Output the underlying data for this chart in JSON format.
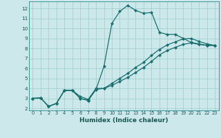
{
  "xlabel": "Humidex (Indice chaleur)",
  "background_color": "#cce8ea",
  "grid_color": "#99cccc",
  "line_color": "#1a6e6e",
  "xlim": [
    -0.5,
    23.5
  ],
  "ylim": [
    1.8,
    12.7
  ],
  "xticks": [
    0,
    1,
    2,
    3,
    4,
    5,
    6,
    7,
    8,
    9,
    10,
    11,
    12,
    13,
    14,
    15,
    16,
    17,
    18,
    19,
    20,
    21,
    22,
    23
  ],
  "yticks": [
    2,
    3,
    4,
    5,
    6,
    7,
    8,
    9,
    10,
    11,
    12
  ],
  "line1_x": [
    0,
    1,
    2,
    3,
    4,
    5,
    6,
    7,
    8,
    9,
    10,
    11,
    12,
    13,
    14,
    15,
    16,
    17,
    18,
    19,
    20,
    21,
    22,
    23
  ],
  "line1_y": [
    3.0,
    3.05,
    2.2,
    2.5,
    3.8,
    3.8,
    3.0,
    2.8,
    3.9,
    6.2,
    10.5,
    11.7,
    12.3,
    11.8,
    11.5,
    11.6,
    9.6,
    9.4,
    9.4,
    9.0,
    8.6,
    8.45,
    8.3,
    8.3
  ],
  "line2_x": [
    0,
    1,
    2,
    3,
    4,
    5,
    6,
    7,
    8,
    9,
    10,
    11,
    12,
    13,
    14,
    15,
    16,
    17,
    18,
    19,
    20,
    21,
    22,
    23
  ],
  "line2_y": [
    3.0,
    3.05,
    2.2,
    2.5,
    3.8,
    3.8,
    3.2,
    2.9,
    4.0,
    4.0,
    4.5,
    5.0,
    5.5,
    6.1,
    6.6,
    7.3,
    7.9,
    8.35,
    8.65,
    8.95,
    9.0,
    8.7,
    8.45,
    8.3
  ],
  "line3_x": [
    0,
    1,
    2,
    3,
    4,
    5,
    6,
    7,
    8,
    9,
    10,
    11,
    12,
    13,
    14,
    15,
    16,
    17,
    18,
    19,
    20,
    21,
    22,
    23
  ],
  "line3_y": [
    3.0,
    3.05,
    2.2,
    2.5,
    3.8,
    3.8,
    3.0,
    2.8,
    3.9,
    4.0,
    4.3,
    4.7,
    5.1,
    5.6,
    6.1,
    6.7,
    7.35,
    7.8,
    8.1,
    8.4,
    8.55,
    8.4,
    8.3,
    8.3
  ]
}
